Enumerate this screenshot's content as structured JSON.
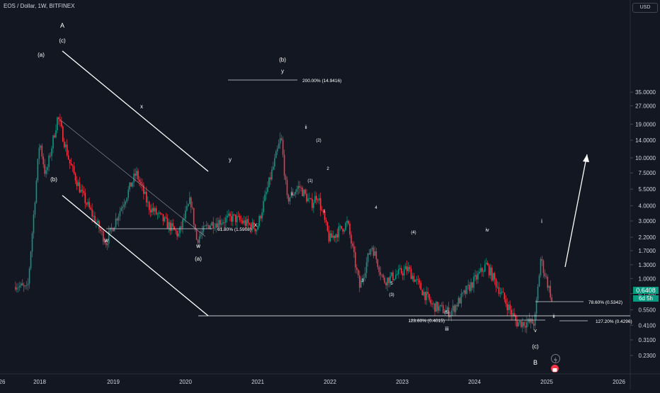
{
  "header": {
    "symbol_line": "EOS / Dollar, 1W, BITFINEX",
    "currency": "USD"
  },
  "price_tag": {
    "value": "0.6408",
    "countdown": "6d 5h"
  },
  "colors": {
    "background": "#131722",
    "up": "#089981",
    "down": "#f23645",
    "annotation": "#ffffff",
    "axis_text": "#d1d4dc"
  },
  "icons": [
    "flash-icon",
    "calendar-event-icon"
  ],
  "chart_data": {
    "type": "candlestick",
    "symbol": "EOS / Dollar",
    "interval": "1W",
    "exchange": "BITFINEX",
    "y_scale": "log",
    "y_ticks": [
      "35.0000",
      "27.0000",
      "19.0000",
      "14.0000",
      "10.0000",
      "7.5000",
      "5.5000",
      "4.0000",
      "3.0000",
      "2.2000",
      "1.7000",
      "1.3000",
      "1.0000",
      "0.7500",
      "0.5500",
      "0.4100",
      "0.3100",
      "0.2300"
    ],
    "x_ticks": [
      "26",
      "2018",
      "2019",
      "2020",
      "2021",
      "2022",
      "2023",
      "2024",
      "2025",
      "2026"
    ],
    "last_price": 0.6408,
    "series_anchor_points": [
      {
        "date": "2017-09",
        "price": 0.9
      },
      {
        "date": "2017-11",
        "price": 0.8
      },
      {
        "date": "2018-01",
        "price": 14
      },
      {
        "date": "2018-02",
        "price": 7
      },
      {
        "date": "2018-04",
        "price": 22
      },
      {
        "date": "2018-06",
        "price": 9
      },
      {
        "date": "2018-08",
        "price": 5
      },
      {
        "date": "2018-12",
        "price": 2.0
      },
      {
        "date": "2019-05",
        "price": 7.5
      },
      {
        "date": "2019-07",
        "price": 4.0
      },
      {
        "date": "2019-12",
        "price": 2.3
      },
      {
        "date": "2020-02",
        "price": 4.5
      },
      {
        "date": "2020-03",
        "price": 2.1
      },
      {
        "date": "2020-05",
        "price": 2.8
      },
      {
        "date": "2020-09",
        "price": 3.2
      },
      {
        "date": "2021-01",
        "price": 2.6
      },
      {
        "date": "2021-05",
        "price": 14.9
      },
      {
        "date": "2021-06",
        "price": 4.5
      },
      {
        "date": "2021-08",
        "price": 5.8
      },
      {
        "date": "2021-10",
        "price": 4.1
      },
      {
        "date": "2021-11",
        "price": 5.0
      },
      {
        "date": "2022-01",
        "price": 2.1
      },
      {
        "date": "2022-04",
        "price": 2.9
      },
      {
        "date": "2022-06",
        "price": 0.85
      },
      {
        "date": "2022-08",
        "price": 1.9
      },
      {
        "date": "2022-10",
        "price": 0.95
      },
      {
        "date": "2023-02",
        "price": 1.2
      },
      {
        "date": "2023-06",
        "price": 0.6
      },
      {
        "date": "2023-09",
        "price": 0.52
      },
      {
        "date": "2024-03",
        "price": 1.3
      },
      {
        "date": "2024-08",
        "price": 0.43
      },
      {
        "date": "2024-11",
        "price": 0.43
      },
      {
        "date": "2024-12",
        "price": 1.45
      },
      {
        "date": "2025-02",
        "price": 0.6408
      }
    ],
    "levels": [
      {
        "label": "200.00% (14.9416)",
        "price": 14.9416
      },
      {
        "label": "61.80% (1.5908)",
        "price": 1.5908
      },
      {
        "label": "78.60% (0.5342)",
        "price": 0.5342
      },
      {
        "label": "123.60% (0.4015)",
        "price": 0.4015
      },
      {
        "label": "127.20% (0.4296)",
        "price": 0.4296
      }
    ],
    "wave_labels": [
      "A",
      "(c)",
      "(a)",
      "(b)",
      "x",
      "w",
      "(b)",
      "y",
      "x",
      "y",
      "(a)",
      "w",
      "ii",
      "(2)",
      "i",
      "(1)",
      "2",
      "1",
      "4",
      "3",
      "5",
      "(3)",
      "(4)",
      "iv",
      "(5)",
      "iii",
      "i",
      "ii",
      "v",
      "(c)",
      "B"
    ]
  }
}
